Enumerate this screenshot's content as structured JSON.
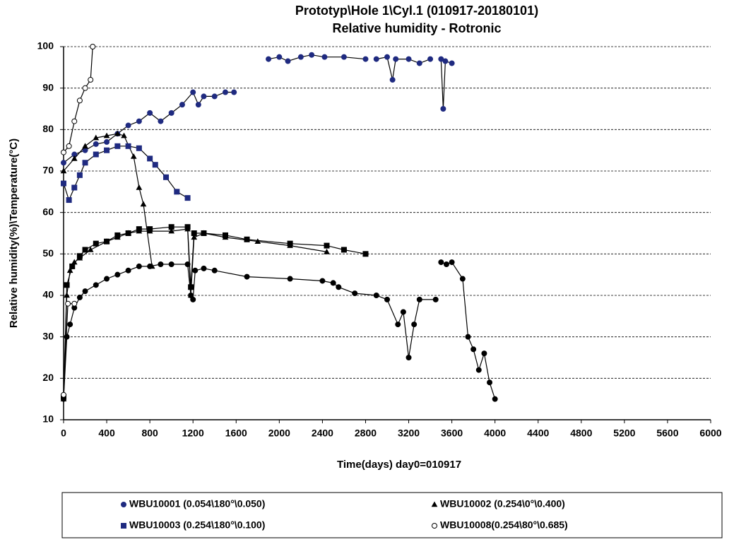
{
  "chart_data": {
    "type": "line",
    "title": "Prototyp\\Hole 1\\Cyl.1    (010917-20180101)",
    "subtitle": "Relative humidity - Rotronic",
    "x_label": "Time(days) day0=010917",
    "y_label": "Relative humidity(%)\\Temperature(°C)",
    "xlim": [
      0,
      6000
    ],
    "xticks": [
      0,
      400,
      800,
      1200,
      1600,
      2000,
      2400,
      2800,
      3200,
      3600,
      4000,
      4400,
      4800,
      5200,
      5600,
      6000
    ],
    "ylim": [
      10,
      100
    ],
    "yticks": [
      10,
      20,
      30,
      40,
      50,
      60,
      70,
      80,
      90,
      100
    ],
    "grid": "y",
    "legend": "bottom",
    "series": [
      {
        "name": "WBU10001 (0.054\\180°\\0.050)",
        "marker": "circle",
        "color": "#000000",
        "marker_color": "#1f2a80",
        "x": [
          0,
          100,
          200,
          300,
          400,
          500,
          600,
          700,
          800,
          900,
          1000,
          1100,
          1200,
          1250,
          1300,
          1400,
          1500,
          1580,
          1700,
          1900,
          2000,
          2080,
          2200,
          2300,
          2420,
          2600,
          2800,
          2850,
          2900,
          3000,
          3050,
          3080,
          3200,
          3300,
          3400,
          3450,
          3500,
          3520,
          3540,
          3600
        ],
        "values": [
          72,
          74,
          75,
          76.5,
          77,
          79,
          81,
          82,
          84,
          82,
          84,
          86,
          89,
          86,
          88,
          88,
          89,
          89,
          null,
          97,
          97.5,
          96.5,
          97.5,
          98,
          97.5,
          97.5,
          97,
          null,
          97,
          97.5,
          92,
          97,
          97,
          96,
          97,
          null,
          97,
          85,
          96.5,
          96
        ]
      },
      {
        "name": "WBU10002 (0.254\\0°\\0.400)",
        "marker": "triangle",
        "color": "#000000",
        "marker_color": "#000000",
        "x": [
          0,
          100,
          200,
          300,
          400,
          500,
          560,
          650,
          700,
          740,
          820
        ],
        "values": [
          70,
          73,
          76,
          78,
          78.5,
          79,
          78.5,
          73.5,
          66,
          62,
          47
        ]
      },
      {
        "name": "WBU10003 (0.254\\180°\\0.100)",
        "marker": "square",
        "color": "#000000",
        "marker_color": "#1f2a80",
        "x": [
          0,
          50,
          100,
          150,
          200,
          300,
          400,
          500,
          600,
          700,
          800,
          850,
          950,
          1050,
          1150
        ],
        "values": [
          67,
          63,
          66,
          69,
          72,
          74,
          75,
          76,
          76,
          75.5,
          73,
          71.5,
          68.5,
          65,
          63.5
        ]
      },
      {
        "name": "WBU10008(0.254\\80°\\0.685)",
        "marker": "open-circle",
        "color": "#000000",
        "marker_color": "#ffffff",
        "x": [
          0,
          50,
          100,
          150,
          200,
          250,
          270
        ],
        "values": [
          74.5,
          76,
          82,
          87,
          90,
          92,
          100
        ]
      },
      {
        "marker": "circle",
        "color": "#000000",
        "marker_color": "#000000",
        "x": [
          0,
          30,
          60,
          100,
          150,
          200,
          300,
          400,
          500,
          600,
          700,
          800,
          900,
          1000,
          1150,
          1180,
          1200,
          1220,
          1300,
          1400,
          1700,
          2100,
          2400,
          2500,
          2550,
          2700,
          2900,
          3000,
          3100,
          3150,
          3200,
          3250,
          3300,
          3450,
          3480,
          3500,
          3550,
          3600,
          3700,
          3750,
          3800,
          3850,
          3900,
          3950,
          4000
        ],
        "values": [
          15,
          30,
          33,
          37,
          39.5,
          41,
          42.5,
          44,
          45,
          46,
          47,
          47,
          47.5,
          47.5,
          47.5,
          40,
          39,
          46,
          46.5,
          46,
          44.5,
          44,
          43.5,
          43,
          42,
          40.5,
          40,
          39,
          33,
          36,
          25,
          33,
          39,
          39,
          null,
          48,
          47.5,
          48,
          44,
          30,
          27,
          22,
          26,
          19,
          15
        ]
      },
      {
        "marker": "triangle",
        "color": "#000000",
        "marker_color": "#000000",
        "x": [
          0,
          30,
          60,
          100,
          150,
          250,
          400,
          500,
          600,
          700,
          800,
          1000,
          1150,
          1180,
          1210,
          1300,
          1500,
          1800,
          2100,
          2440
        ],
        "values": [
          15,
          40,
          46,
          48,
          49,
          51,
          53,
          54,
          55,
          55.5,
          55.5,
          55.5,
          56,
          40,
          54,
          55,
          54,
          53,
          52,
          50.5
        ]
      },
      {
        "marker": "square",
        "color": "#000000",
        "marker_color": "#000000",
        "x": [
          0,
          30,
          80,
          150,
          200,
          300,
          400,
          500,
          600,
          700,
          800,
          1000,
          1150,
          1180,
          1210,
          1300,
          1500,
          1700,
          2100,
          2440,
          2600,
          2800
        ],
        "values": [
          15.5,
          42.5,
          47,
          49.5,
          51,
          52.5,
          53,
          54.5,
          55,
          56,
          56,
          56.5,
          56.5,
          42,
          55,
          55,
          54.5,
          53.5,
          52.5,
          52,
          51,
          50
        ]
      },
      {
        "marker": "open-circle",
        "color": "#000000",
        "marker_color": "#ffffff",
        "x": [
          0,
          40,
          100
        ],
        "values": [
          16,
          38,
          38
        ]
      }
    ]
  }
}
